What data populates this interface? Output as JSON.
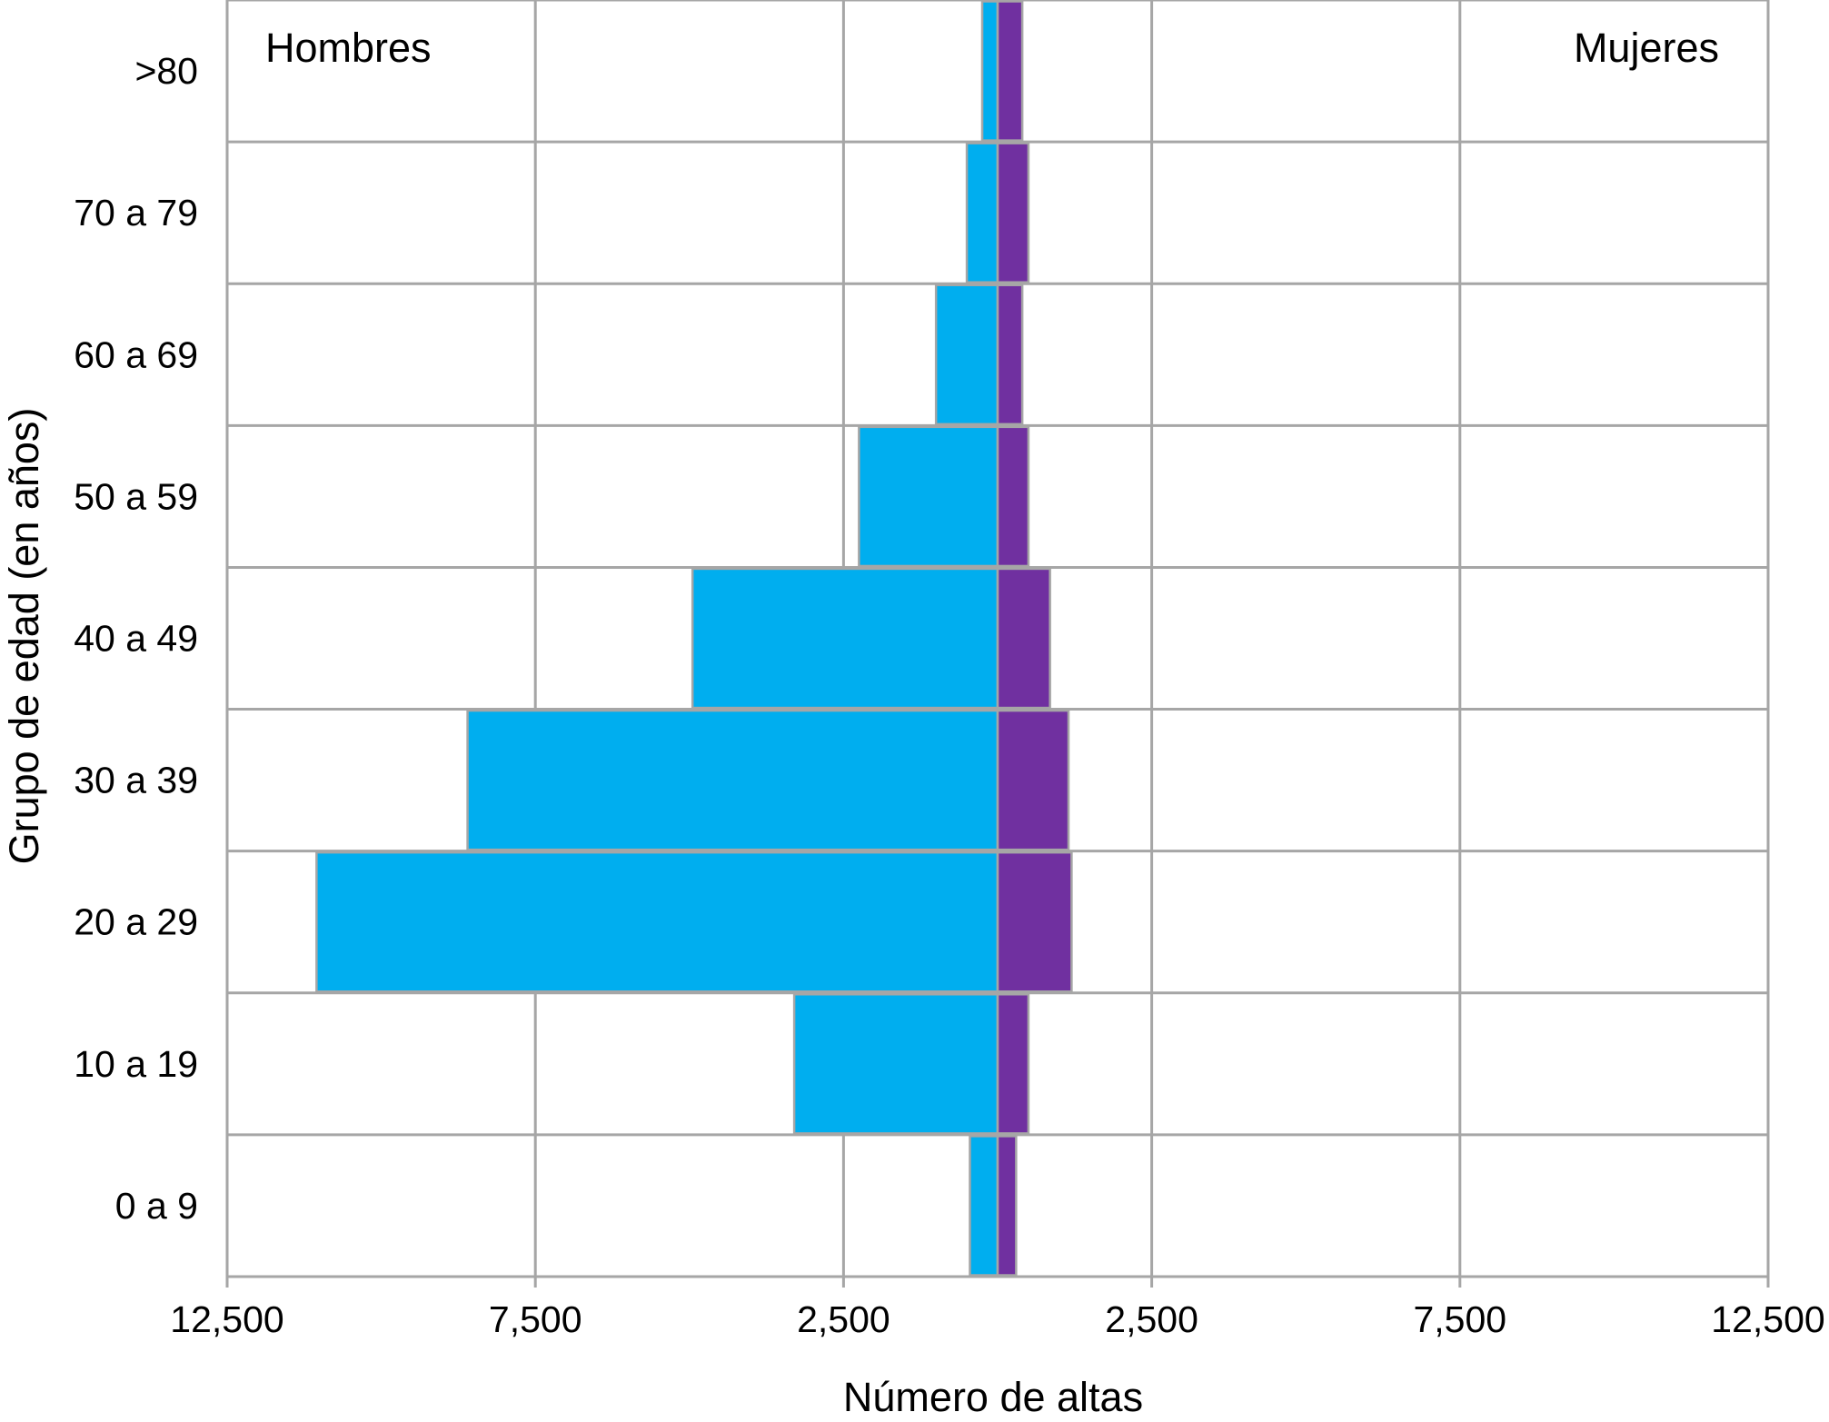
{
  "chart_data": {
    "type": "bar",
    "orientation": "horizontal-population-pyramid",
    "categories": [
      "0 a 9",
      "10 a 19",
      "20 a 29",
      "30 a 39",
      "40 a 49",
      "50 a 59",
      "60 a 69",
      "70 a 79",
      ">80"
    ],
    "series": [
      {
        "name": "Hombres",
        "color": "#00AEEF",
        "values": [
          450,
          3300,
          11050,
          8600,
          4950,
          2250,
          1000,
          500,
          250
        ]
      },
      {
        "name": "Mujeres",
        "color": "#7030A0",
        "values": [
          300,
          500,
          1200,
          1150,
          850,
          500,
          400,
          500,
          400
        ]
      }
    ],
    "xlabel": "Número de altas",
    "ylabel": "Grupo de edad (en años)",
    "xlim": [
      -12500,
      12500
    ],
    "x_ticks": [
      -12500,
      -7500,
      -2500,
      2500,
      7500,
      12500
    ],
    "x_tick_labels": [
      "12,500",
      "7,500",
      "2,500",
      "2,500",
      "7,500",
      "12,500"
    ],
    "grid": true,
    "legend_placement": "top-left and top-right inside plot",
    "grid_color": "#A6A6A6"
  }
}
